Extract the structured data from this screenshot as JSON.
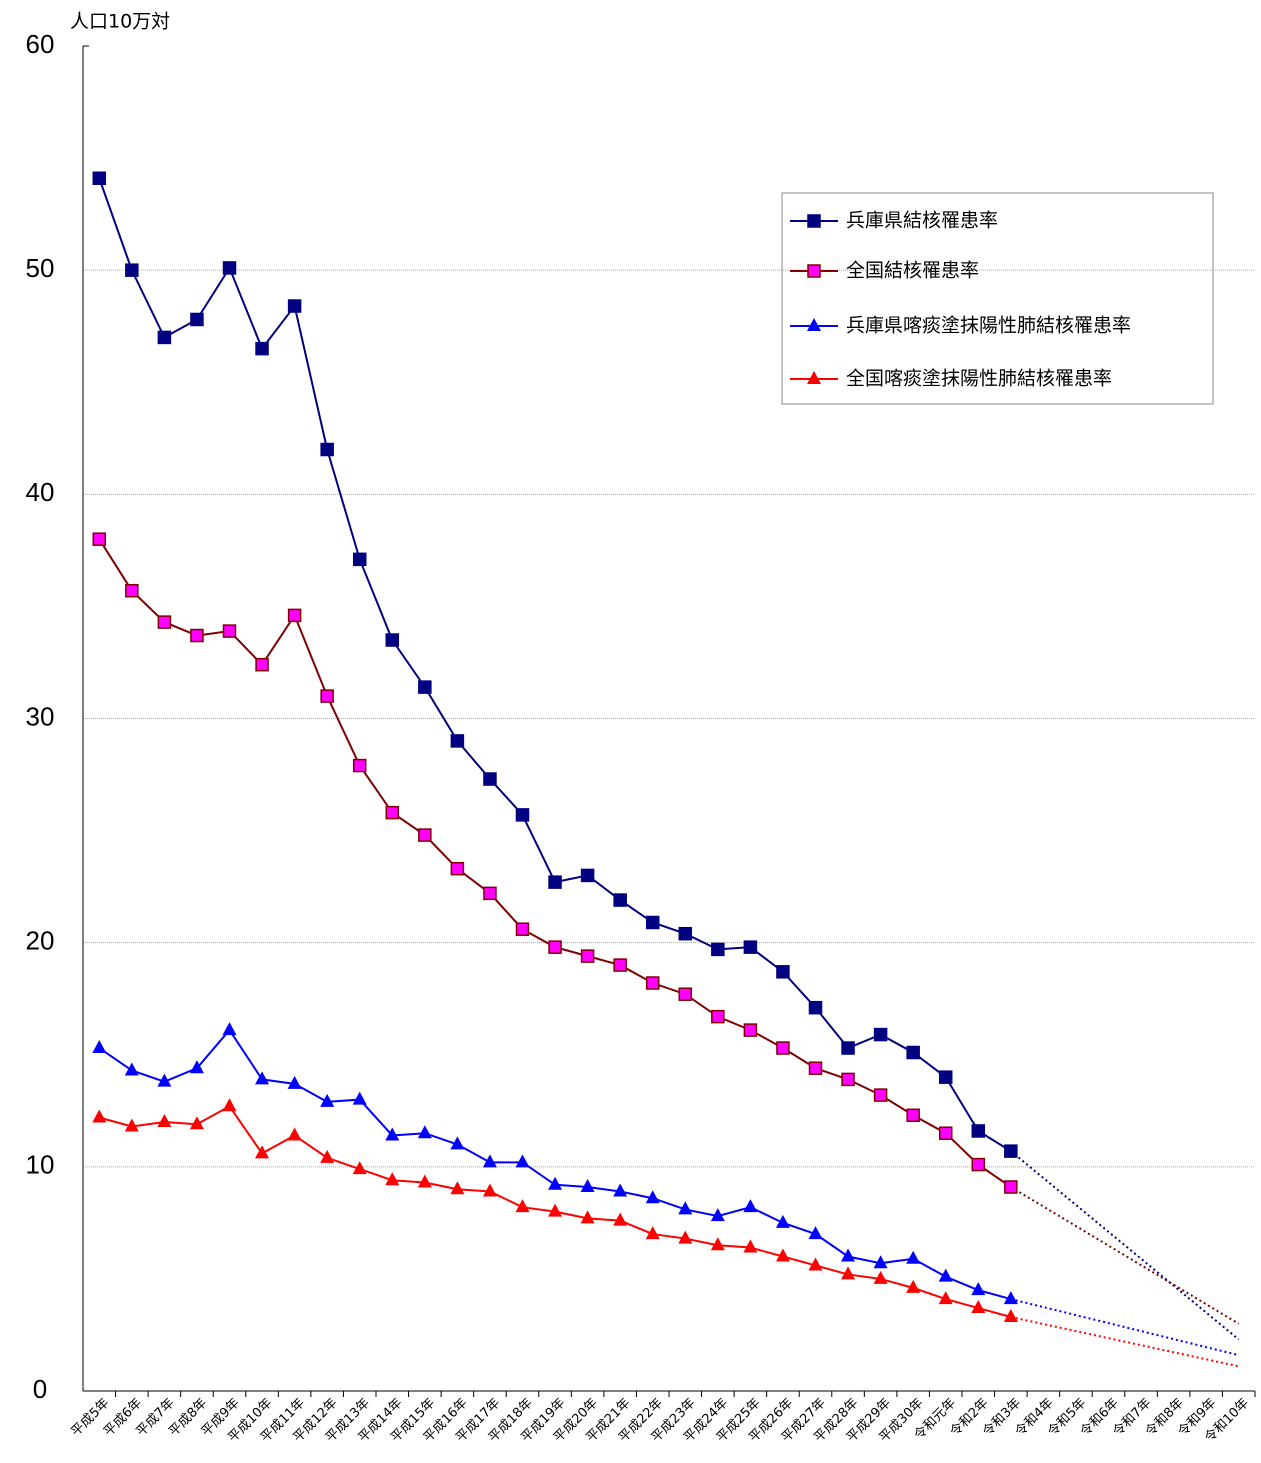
{
  "chart_data": {
    "type": "line",
    "y_label": "人口10万対",
    "categories": [
      "平成5年",
      "平成6年",
      "平成7年",
      "平成8年",
      "平成9年",
      "平成10年",
      "平成11年",
      "平成12年",
      "平成13年",
      "平成14年",
      "平成15年",
      "平成16年",
      "平成17年",
      "平成18年",
      "平成19年",
      "平成20年",
      "平成21年",
      "平成22年",
      "平成23年",
      "平成24年",
      "平成25年",
      "平成26年",
      "平成27年",
      "平成28年",
      "平成29年",
      "平成30年",
      "令和元年",
      "令和2年",
      "令和3年",
      "令和4年",
      "令和5年",
      "令和6年",
      "令和7年",
      "令和8年",
      "令和9年",
      "令和10年"
    ],
    "ylim": [
      0,
      60
    ],
    "yticks": [
      0,
      10,
      20,
      30,
      40,
      50,
      60
    ],
    "grid": true,
    "series": [
      {
        "name": "兵庫県結核罹患率",
        "color": "#000080",
        "marker": "square",
        "marker_color": "#000080",
        "values": [
          54.1,
          50.0,
          47.0,
          47.8,
          50.1,
          46.5,
          48.4,
          42.0,
          37.1,
          33.5,
          31.4,
          29.0,
          27.3,
          25.7,
          22.7,
          23.0,
          21.9,
          20.9,
          20.4,
          19.7,
          19.8,
          18.7,
          17.1,
          15.3,
          15.9,
          15.1,
          14.0,
          11.6,
          10.7,
          null,
          null,
          null,
          null,
          null,
          null,
          null
        ],
        "forecast_values": [
          null,
          null,
          null,
          null,
          null,
          null,
          null,
          null,
          null,
          null,
          null,
          null,
          null,
          null,
          null,
          null,
          null,
          null,
          null,
          null,
          null,
          null,
          null,
          null,
          null,
          null,
          null,
          null,
          null,
          null,
          null,
          null,
          null,
          null,
          null,
          2.3
        ]
      },
      {
        "name": "全国結核罹患率",
        "color": "#800000",
        "marker": "square",
        "marker_color": "#ff00ff",
        "values": [
          38.0,
          35.7,
          34.3,
          33.7,
          33.9,
          32.4,
          34.6,
          31.0,
          27.9,
          25.8,
          24.8,
          23.3,
          22.2,
          20.6,
          19.8,
          19.4,
          19.0,
          18.2,
          17.7,
          16.7,
          16.1,
          15.3,
          14.4,
          13.9,
          13.2,
          12.3,
          11.5,
          10.1,
          9.1,
          null,
          null,
          null,
          null,
          null,
          null,
          null
        ],
        "forecast_values": [
          null,
          null,
          null,
          null,
          null,
          null,
          null,
          null,
          null,
          null,
          null,
          null,
          null,
          null,
          null,
          null,
          null,
          null,
          null,
          null,
          null,
          null,
          null,
          null,
          null,
          null,
          null,
          null,
          null,
          null,
          null,
          null,
          null,
          null,
          null,
          3.0
        ]
      },
      {
        "name": "兵庫県喀痰塗抹陽性肺結核罹患率",
        "color": "#0000ff",
        "marker": "triangle",
        "marker_color": "#0000ff",
        "values": [
          15.3,
          14.3,
          13.8,
          14.4,
          16.1,
          13.9,
          13.7,
          12.9,
          13.0,
          11.4,
          11.5,
          11.0,
          10.2,
          10.2,
          9.2,
          9.1,
          8.9,
          8.6,
          8.1,
          7.8,
          8.2,
          7.5,
          7.0,
          6.0,
          5.7,
          5.9,
          5.1,
          4.5,
          4.1,
          null,
          null,
          null,
          null,
          null,
          null,
          null
        ],
        "forecast_values": [
          null,
          null,
          null,
          null,
          null,
          null,
          null,
          null,
          null,
          null,
          null,
          null,
          null,
          null,
          null,
          null,
          null,
          null,
          null,
          null,
          null,
          null,
          null,
          null,
          null,
          null,
          null,
          null,
          null,
          null,
          null,
          null,
          null,
          null,
          null,
          1.6
        ]
      },
      {
        "name": "全国喀痰塗抹陽性肺結核罹患率",
        "color": "#ff0000",
        "marker": "triangle",
        "marker_color": "#ff0000",
        "values": [
          12.2,
          11.8,
          12.0,
          11.9,
          12.7,
          10.6,
          11.4,
          10.4,
          9.9,
          9.4,
          9.3,
          9.0,
          8.9,
          8.2,
          8.0,
          7.7,
          7.6,
          7.0,
          6.8,
          6.5,
          6.4,
          6.0,
          5.6,
          5.2,
          5.0,
          4.6,
          4.1,
          3.7,
          3.3,
          null,
          null,
          null,
          null,
          null,
          null,
          null
        ],
        "forecast_values": [
          null,
          null,
          null,
          null,
          null,
          null,
          null,
          null,
          null,
          null,
          null,
          null,
          null,
          null,
          null,
          null,
          null,
          null,
          null,
          null,
          null,
          null,
          null,
          null,
          null,
          null,
          null,
          null,
          null,
          null,
          null,
          null,
          null,
          null,
          null,
          1.1
        ]
      }
    ]
  }
}
